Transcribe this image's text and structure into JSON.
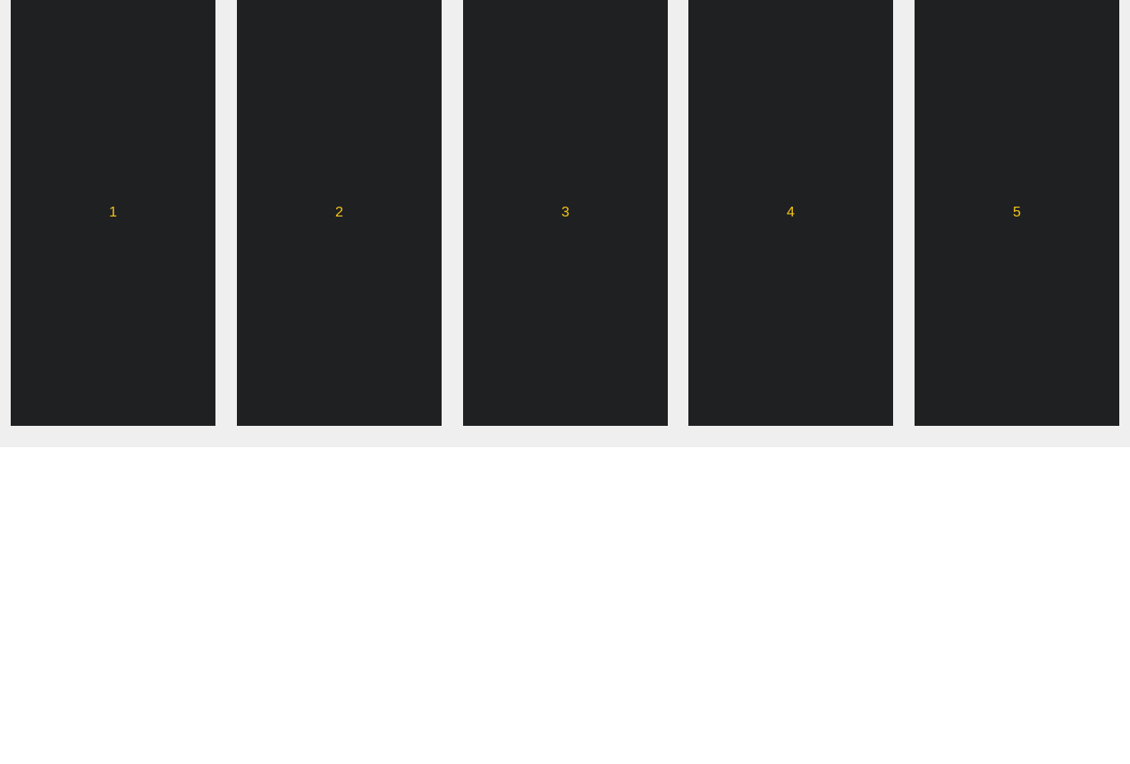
{
  "panels": [
    {
      "label": "1"
    },
    {
      "label": "2"
    },
    {
      "label": "3"
    },
    {
      "label": "4"
    },
    {
      "label": "5"
    }
  ],
  "colors": {
    "strip_background": "#efefef",
    "panel_background": "#1f2022",
    "label_color": "#f5c518",
    "page_background": "#ffffff"
  }
}
